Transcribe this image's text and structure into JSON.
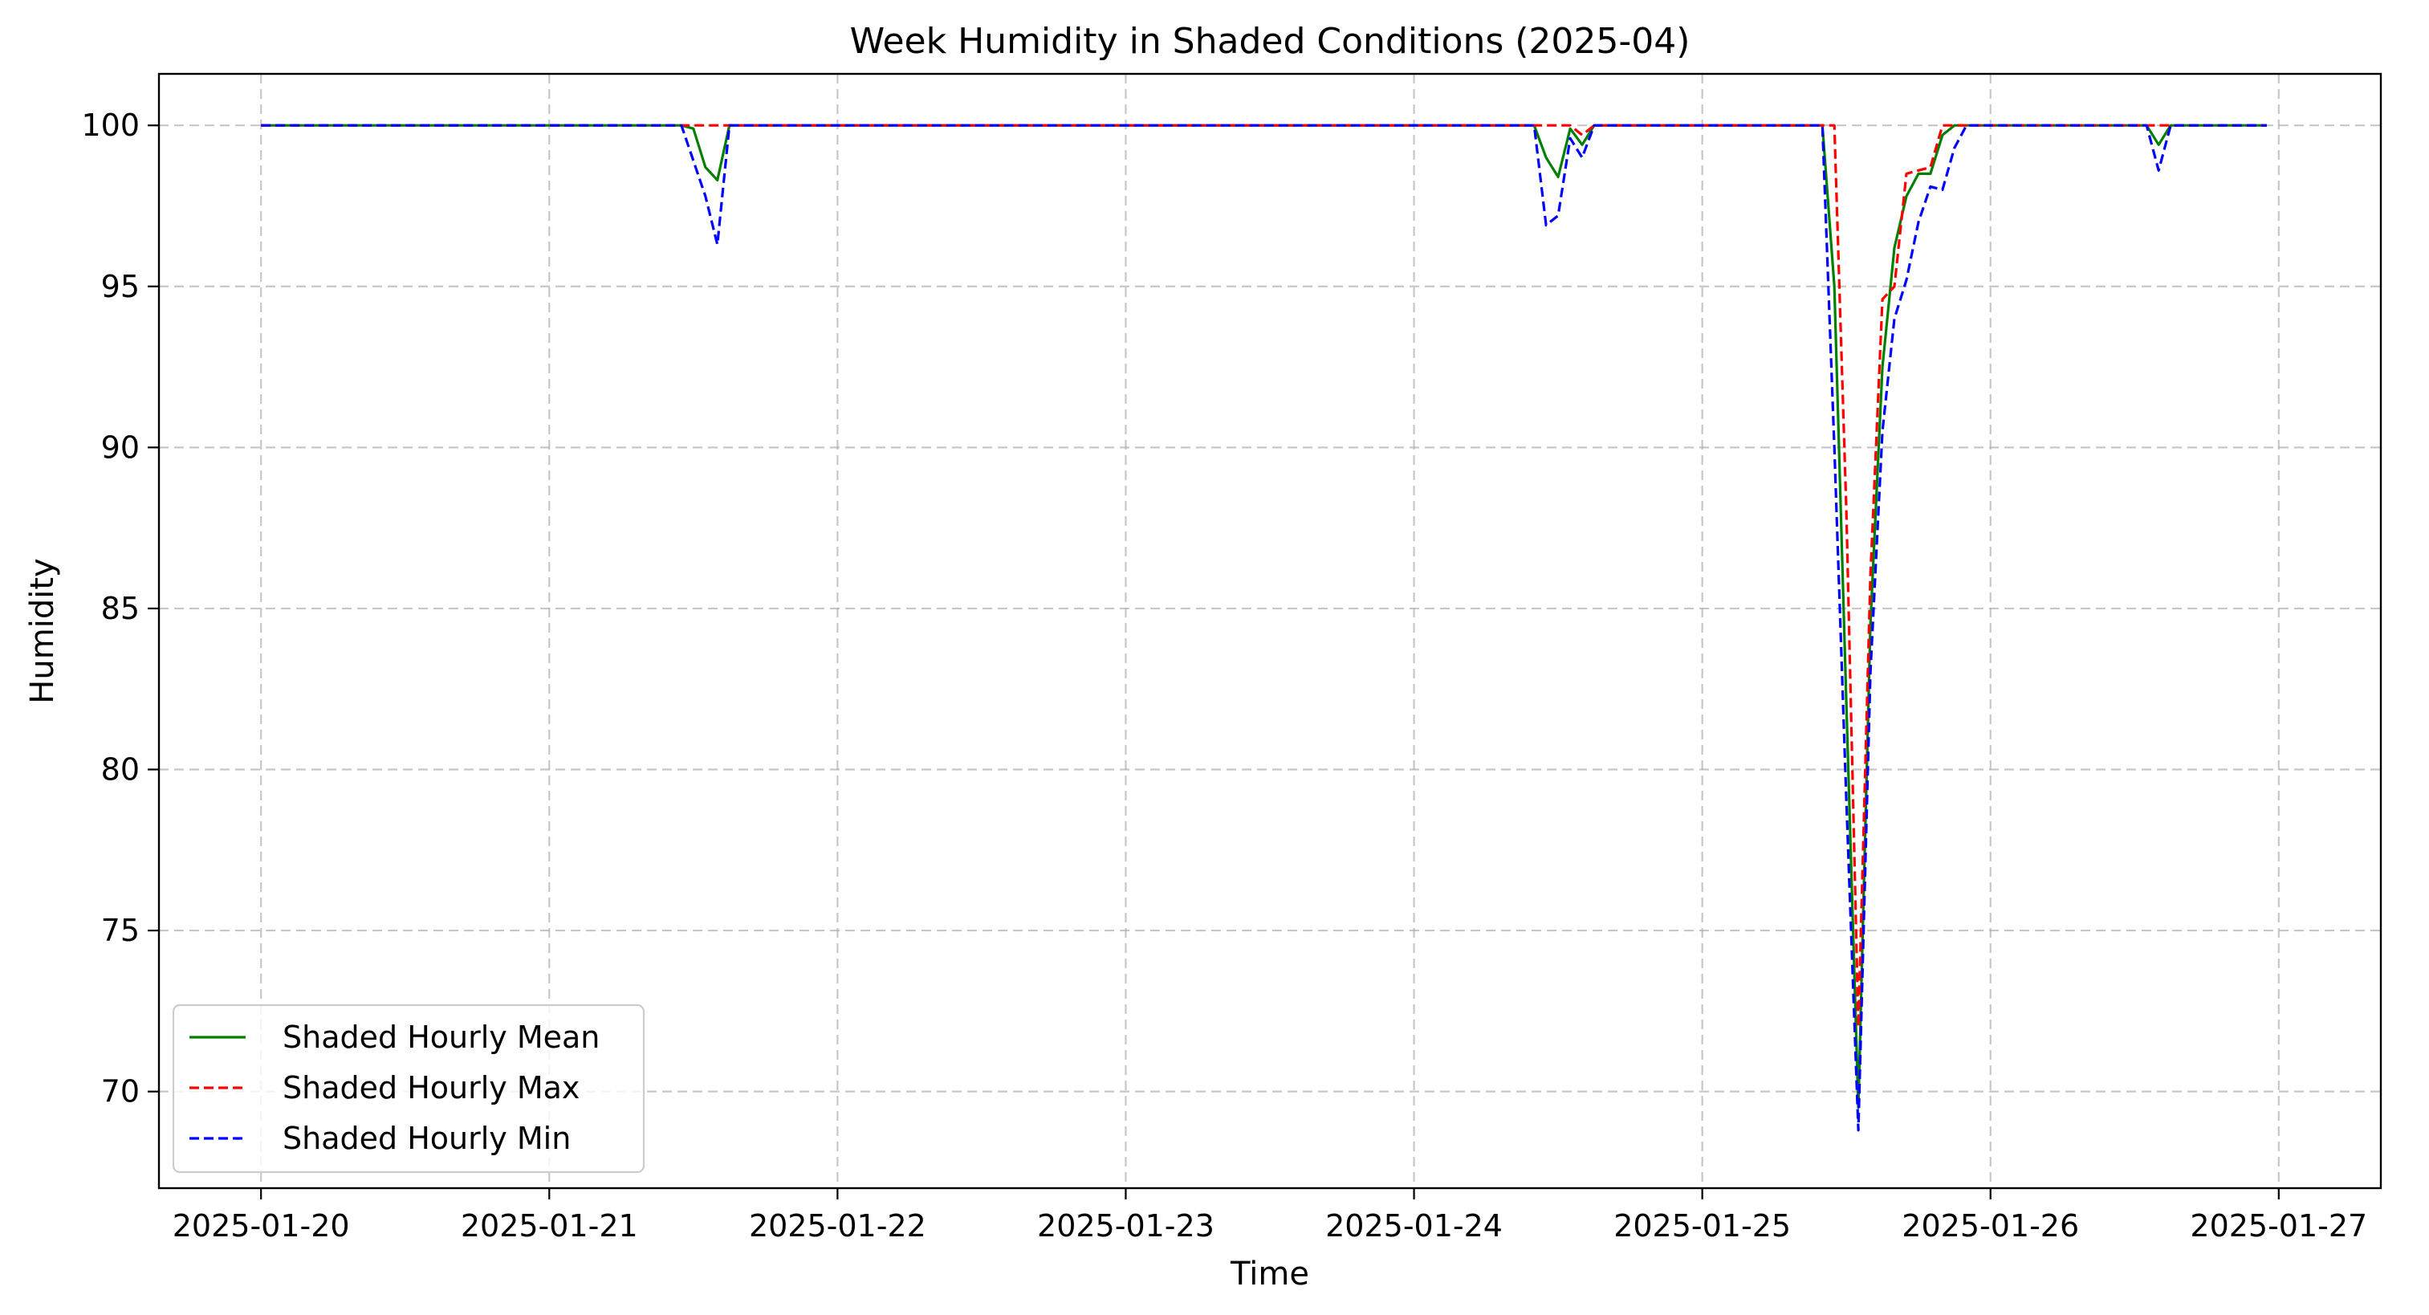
{
  "chart_data": {
    "type": "line",
    "title": "Week Humidity in Shaded Conditions (2025-04)",
    "xlabel": "Time",
    "ylabel": "Humidity",
    "xlim": [
      "2025-01-19 15:30",
      "2025-01-27 08:30"
    ],
    "ylim": [
      67.0,
      101.6
    ],
    "grid": true,
    "legend_position": "lower-left",
    "x_ticks": [
      "2025-01-20",
      "2025-01-21",
      "2025-01-22",
      "2025-01-23",
      "2025-01-24",
      "2025-01-25",
      "2025-01-26",
      "2025-01-27"
    ],
    "y_ticks": [
      70,
      75,
      80,
      85,
      90,
      95,
      100
    ],
    "series": [
      {
        "name": "Shaded Hourly Mean",
        "color": "#008000",
        "dash": "solid",
        "points": [
          [
            "2025-01-20 00:00",
            100
          ],
          [
            "2025-01-21 11:00",
            100
          ],
          [
            "2025-01-21 12:00",
            99.9
          ],
          [
            "2025-01-21 13:00",
            98.7
          ],
          [
            "2025-01-21 14:00",
            98.3
          ],
          [
            "2025-01-21 15:00",
            100
          ],
          [
            "2025-01-24 10:00",
            100
          ],
          [
            "2025-01-24 11:00",
            99.0
          ],
          [
            "2025-01-24 12:00",
            98.4
          ],
          [
            "2025-01-24 13:00",
            99.9
          ],
          [
            "2025-01-24 14:00",
            99.4
          ],
          [
            "2025-01-24 15:00",
            100
          ],
          [
            "2025-01-25 10:00",
            100
          ],
          [
            "2025-01-25 11:00",
            95.0
          ],
          [
            "2025-01-25 12:00",
            82.0
          ],
          [
            "2025-01-25 13:00",
            69.5
          ],
          [
            "2025-01-25 14:00",
            84.5
          ],
          [
            "2025-01-25 15:00",
            92.5
          ],
          [
            "2025-01-25 16:00",
            96.2
          ],
          [
            "2025-01-25 17:00",
            97.8
          ],
          [
            "2025-01-25 18:00",
            98.5
          ],
          [
            "2025-01-25 19:00",
            98.5
          ],
          [
            "2025-01-25 20:00",
            99.7
          ],
          [
            "2025-01-25 21:00",
            100
          ],
          [
            "2025-01-26 13:00",
            100
          ],
          [
            "2025-01-26 14:00",
            99.4
          ],
          [
            "2025-01-26 15:00",
            100
          ],
          [
            "2025-01-26 23:00",
            100
          ]
        ]
      },
      {
        "name": "Shaded Hourly Max",
        "color": "#ff0000",
        "dash": "dashed",
        "points": [
          [
            "2025-01-20 00:00",
            100
          ],
          [
            "2025-01-24 12:00",
            100
          ],
          [
            "2025-01-24 13:00",
            100
          ],
          [
            "2025-01-24 14:00",
            99.7
          ],
          [
            "2025-01-24 15:00",
            100
          ],
          [
            "2025-01-25 11:00",
            100
          ],
          [
            "2025-01-25 12:00",
            88.0
          ],
          [
            "2025-01-25 13:00",
            72.0
          ],
          [
            "2025-01-25 14:00",
            86.0
          ],
          [
            "2025-01-25 15:00",
            94.6
          ],
          [
            "2025-01-25 16:00",
            95.0
          ],
          [
            "2025-01-25 17:00",
            98.5
          ],
          [
            "2025-01-25 18:00",
            98.6
          ],
          [
            "2025-01-25 19:00",
            98.7
          ],
          [
            "2025-01-25 20:00",
            100
          ],
          [
            "2025-01-26 23:00",
            100
          ]
        ]
      },
      {
        "name": "Shaded Hourly Min",
        "color": "#0000ff",
        "dash": "dashed",
        "points": [
          [
            "2025-01-20 00:00",
            100
          ],
          [
            "2025-01-21 11:00",
            100
          ],
          [
            "2025-01-21 13:00",
            97.8
          ],
          [
            "2025-01-21 14:00",
            96.3
          ],
          [
            "2025-01-21 15:00",
            100
          ],
          [
            "2025-01-24 10:00",
            100
          ],
          [
            "2025-01-24 11:00",
            96.9
          ],
          [
            "2025-01-24 12:00",
            97.2
          ],
          [
            "2025-01-24 13:00",
            99.6
          ],
          [
            "2025-01-24 14:00",
            99.0
          ],
          [
            "2025-01-24 15:00",
            100
          ],
          [
            "2025-01-25 10:00",
            100
          ],
          [
            "2025-01-25 11:00",
            90.0
          ],
          [
            "2025-01-25 12:00",
            79.0
          ],
          [
            "2025-01-25 13:00",
            68.8
          ],
          [
            "2025-01-25 14:00",
            83.0
          ],
          [
            "2025-01-25 15:00",
            90.5
          ],
          [
            "2025-01-25 16:00",
            94.0
          ],
          [
            "2025-01-25 17:00",
            95.2
          ],
          [
            "2025-01-25 18:00",
            97.0
          ],
          [
            "2025-01-25 19:00",
            98.1
          ],
          [
            "2025-01-25 20:00",
            98.0
          ],
          [
            "2025-01-25 21:00",
            99.3
          ],
          [
            "2025-01-25 22:00",
            100
          ],
          [
            "2025-01-26 13:00",
            100
          ],
          [
            "2025-01-26 14:00",
            98.6
          ],
          [
            "2025-01-26 15:00",
            100
          ],
          [
            "2025-01-26 23:00",
            100
          ]
        ]
      }
    ]
  }
}
